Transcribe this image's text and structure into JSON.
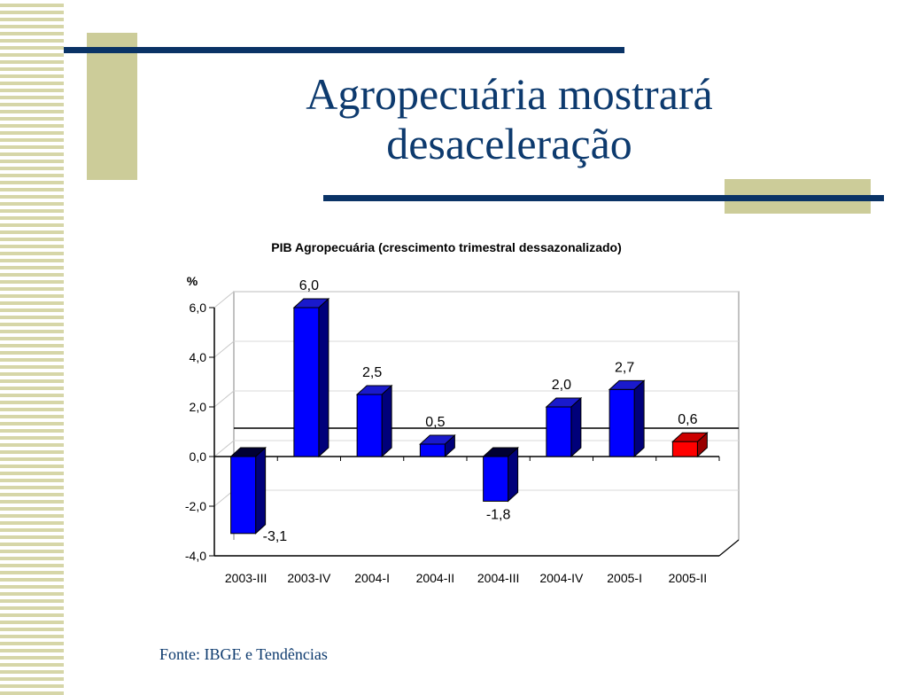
{
  "slide": {
    "title_line1": "Agropecuária mostrará",
    "title_line2": "desaceleração",
    "source": "Fonte: IBGE e Tendências"
  },
  "colors": {
    "accent_bar": "#0000ff",
    "highlight_bar": "#ff0000",
    "title": "#0d3a6e",
    "decor": "#cccc99"
  },
  "chart_data": {
    "type": "bar",
    "title": "PIB Agropecuária (crescimento trimestral dessazonalizado)",
    "ylabel": "%",
    "xlabel": "",
    "categories": [
      "2003-III",
      "2003-IV",
      "2004-I",
      "2004-II",
      "2004-III",
      "2004-IV",
      "2005-I",
      "2005-II"
    ],
    "values": [
      -3.1,
      6.0,
      2.5,
      0.5,
      -1.8,
      2.0,
      2.7,
      0.6
    ],
    "value_labels": [
      "-3,1",
      "6,0",
      "2,5",
      "0,5",
      "-1,8",
      "2,0",
      "2,7",
      "0,6"
    ],
    "highlight_index": 7,
    "ylim": [
      -4,
      6
    ],
    "yticks": [
      -4,
      -2,
      0,
      2,
      4,
      6
    ],
    "ytick_labels": [
      "-4,0",
      "-2,0",
      "0,0",
      "2,0",
      "4,0",
      "6,0"
    ],
    "grid": true,
    "reference_line": 0.5
  }
}
